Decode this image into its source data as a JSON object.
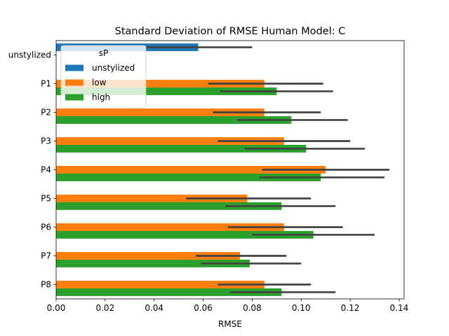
{
  "chart_data": {
    "type": "bar",
    "orientation": "horizontal",
    "title": "Standard Deviation of RMSE Human Model: C",
    "xlabel": "RMSE",
    "ylabel": "",
    "xlim": [
      0,
      0.142
    ],
    "xticks": [
      "0.00",
      "0.02",
      "0.04",
      "0.06",
      "0.08",
      "0.10",
      "0.12",
      "0.14"
    ],
    "xtick_values": [
      0,
      0.02,
      0.04,
      0.06,
      0.08,
      0.1,
      0.12,
      0.14
    ],
    "categories": [
      "unstylized",
      "P1",
      "P2",
      "P3",
      "P4",
      "P5",
      "P6",
      "P7",
      "P8"
    ],
    "legend": {
      "title": "sP",
      "position": "upper-left"
    },
    "series": [
      {
        "name": "unstylized",
        "color": "#1f77b4",
        "values": [
          0.058,
          null,
          null,
          null,
          null,
          null,
          null,
          null,
          null
        ],
        "ci_low": [
          0.037,
          null,
          null,
          null,
          null,
          null,
          null,
          null,
          null
        ],
        "ci_high": [
          0.08,
          null,
          null,
          null,
          null,
          null,
          null,
          null,
          null
        ]
      },
      {
        "name": "low",
        "color": "#ff7f0e",
        "values": [
          null,
          0.085,
          0.085,
          0.093,
          0.11,
          0.078,
          0.093,
          0.075,
          0.085
        ],
        "ci_low": [
          null,
          0.062,
          0.064,
          0.066,
          0.084,
          0.053,
          0.07,
          0.057,
          0.066
        ],
        "ci_high": [
          null,
          0.109,
          0.108,
          0.12,
          0.136,
          0.104,
          0.117,
          0.094,
          0.104
        ]
      },
      {
        "name": "high",
        "color": "#2ca02c",
        "values": [
          null,
          0.09,
          0.096,
          0.102,
          0.108,
          0.092,
          0.105,
          0.079,
          0.092
        ],
        "ci_low": [
          null,
          0.067,
          0.074,
          0.077,
          0.083,
          0.069,
          0.08,
          0.059,
          0.071
        ],
        "ci_high": [
          null,
          0.113,
          0.119,
          0.126,
          0.134,
          0.114,
          0.13,
          0.1,
          0.114
        ]
      }
    ]
  }
}
